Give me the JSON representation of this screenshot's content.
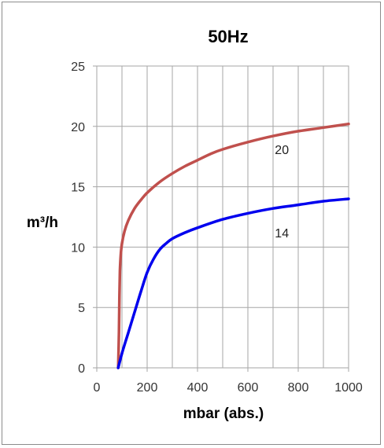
{
  "chart_data": {
    "type": "line",
    "title": "50Hz",
    "xlabel": "mbar (abs.)",
    "ylabel": "m³/h",
    "xlim": [
      0,
      1000
    ],
    "ylim": [
      0,
      25
    ],
    "xticks": [
      0,
      200,
      400,
      600,
      800,
      1000
    ],
    "yticks": [
      0,
      5,
      10,
      15,
      20,
      25
    ],
    "grid": true,
    "legend": "none",
    "colors": {
      "grid": "#a6a6a6",
      "axis": "#808080"
    },
    "series": [
      {
        "name": "20",
        "color": "#c0504d",
        "x": [
          85,
          88,
          90,
          92,
          95,
          100,
          110,
          125,
          150,
          175,
          200,
          250,
          300,
          350,
          400,
          450,
          500,
          600,
          700,
          800,
          900,
          1000
        ],
        "y": [
          0,
          3,
          6,
          8,
          9.3,
          10.3,
          11.3,
          12.2,
          13.2,
          13.9,
          14.5,
          15.4,
          16.1,
          16.7,
          17.2,
          17.7,
          18.1,
          18.7,
          19.2,
          19.6,
          19.9,
          20.2
        ]
      },
      {
        "name": "14",
        "color": "#0000ee",
        "x": [
          85,
          100,
          125,
          150,
          175,
          200,
          225,
          250,
          275,
          300,
          350,
          400,
          500,
          600,
          700,
          800,
          900,
          1000
        ],
        "y": [
          0,
          1.2,
          2.9,
          4.6,
          6.3,
          7.9,
          9.0,
          9.8,
          10.3,
          10.7,
          11.2,
          11.6,
          12.3,
          12.8,
          13.2,
          13.5,
          13.8,
          14.0
        ]
      }
    ],
    "series_labels": [
      {
        "text": "20",
        "x": 735,
        "y": 17.7
      },
      {
        "text": "14",
        "x": 735,
        "y": 10.8
      }
    ]
  }
}
